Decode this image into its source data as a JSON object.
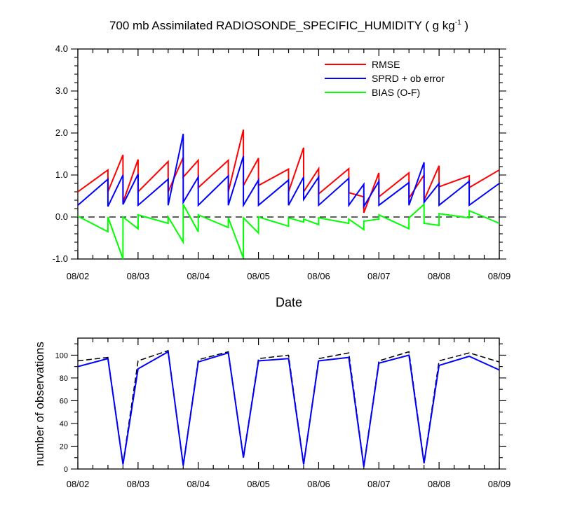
{
  "page": {
    "title_main": "700 mb Assimilated RADIOSONDE_SPECIFIC_HUMIDITY ( g kg",
    "title_sup": "-1",
    "title_end": " )"
  },
  "colors": {
    "rmse": "#ff0000",
    "sprd": "#0000ff",
    "bias": "#00ff00",
    "ref": "#000000"
  },
  "chart_data": [
    {
      "type": "line",
      "title": "700 mb Assimilated RADIOSONDE_SPECIFIC_HUMIDITY ( g kg-1 )",
      "xlabel": "Date",
      "ylabel": "",
      "x_tick_labels": [
        "08/02",
        "08/03",
        "08/04",
        "08/05",
        "08/06",
        "08/07",
        "08/08",
        "08/09"
      ],
      "y_tick_labels": [
        "-1.0",
        "0.0",
        "1.0",
        "2.0",
        "3.0",
        "4.0"
      ],
      "xlim": [
        0,
        7
      ],
      "ylim": [
        -1,
        4
      ],
      "x_unit": "days since 08/02 00Z",
      "legend_position": "top-right",
      "grid": false,
      "reference_line": {
        "y": 0,
        "style": "dashed"
      },
      "series": [
        {
          "name": "RMSE",
          "color": "#ff0000",
          "points": [
            [
              0,
              0.6
            ],
            [
              0.5,
              1.12
            ],
            [
              0.5,
              0.6
            ],
            [
              0.75,
              1.48
            ],
            [
              0.75,
              0.35
            ],
            [
              1,
              1.37
            ],
            [
              1,
              0.6
            ],
            [
              1.5,
              1.32
            ],
            [
              1.5,
              0.6
            ],
            [
              1.75,
              1.42
            ],
            [
              1.75,
              0.95
            ],
            [
              2,
              1.35
            ],
            [
              2,
              0.7
            ],
            [
              2.5,
              1.35
            ],
            [
              2.5,
              0.6
            ],
            [
              2.75,
              2.08
            ],
            [
              2.75,
              0.75
            ],
            [
              3,
              1.4
            ],
            [
              3,
              0.75
            ],
            [
              3.5,
              1.14
            ],
            [
              3.5,
              0.6
            ],
            [
              3.75,
              1.65
            ],
            [
              3.75,
              0.6
            ],
            [
              4,
              1.15
            ],
            [
              4,
              0.55
            ],
            [
              4.5,
              1.15
            ],
            [
              4.5,
              0.58
            ],
            [
              4.75,
              0.48
            ],
            [
              4.75,
              0.1
            ],
            [
              5,
              1.05
            ],
            [
              5,
              0.48
            ],
            [
              5.5,
              1.05
            ],
            [
              5.5,
              0.45
            ],
            [
              5.75,
              1.0
            ],
            [
              5.75,
              0.4
            ],
            [
              6,
              1.22
            ],
            [
              6,
              0.72
            ],
            [
              6.5,
              0.98
            ],
            [
              6.5,
              0.7
            ],
            [
              7,
              1.12
            ]
          ]
        },
        {
          "name": "SPRD + ob error",
          "color": "#0000ff",
          "points": [
            [
              0,
              0.28
            ],
            [
              0.5,
              0.9
            ],
            [
              0.5,
              0.25
            ],
            [
              0.75,
              1.0
            ],
            [
              0.75,
              0.3
            ],
            [
              1,
              1.02
            ],
            [
              1,
              0.28
            ],
            [
              1.5,
              0.9
            ],
            [
              1.5,
              0.28
            ],
            [
              1.75,
              1.98
            ],
            [
              1.75,
              0.35
            ],
            [
              2,
              0.95
            ],
            [
              2,
              0.28
            ],
            [
              2.5,
              0.98
            ],
            [
              2.5,
              0.28
            ],
            [
              2.75,
              1.45
            ],
            [
              2.75,
              0.28
            ],
            [
              3,
              0.88
            ],
            [
              3,
              0.28
            ],
            [
              3.5,
              0.88
            ],
            [
              3.5,
              0.28
            ],
            [
              3.75,
              0.95
            ],
            [
              3.75,
              0.42
            ],
            [
              4,
              0.95
            ],
            [
              4,
              0.28
            ],
            [
              4.5,
              0.92
            ],
            [
              4.5,
              0.28
            ],
            [
              4.75,
              0.78
            ],
            [
              4.75,
              0.25
            ],
            [
              5,
              0.85
            ],
            [
              5,
              0.28
            ],
            [
              5.5,
              0.82
            ],
            [
              5.5,
              0.28
            ],
            [
              5.75,
              1.3
            ],
            [
              5.75,
              0.35
            ],
            [
              6,
              0.8
            ],
            [
              6,
              0.28
            ],
            [
              6.5,
              0.85
            ],
            [
              6.5,
              0.28
            ],
            [
              7,
              0.8
            ]
          ]
        },
        {
          "name": "BIAS (O-F)",
          "color": "#00ff00",
          "points": [
            [
              0,
              0.02
            ],
            [
              0.5,
              -0.35
            ],
            [
              0.5,
              0.0
            ],
            [
              0.75,
              -1.0
            ],
            [
              0.75,
              0.0
            ],
            [
              1,
              -0.28
            ],
            [
              1,
              0.05
            ],
            [
              1.5,
              -0.15
            ],
            [
              1.5,
              0.0
            ],
            [
              1.75,
              -0.6
            ],
            [
              1.75,
              0.3
            ],
            [
              2,
              -0.35
            ],
            [
              2,
              0.05
            ],
            [
              2.5,
              -0.25
            ],
            [
              2.5,
              -0.02
            ],
            [
              2.75,
              -0.98
            ],
            [
              2.75,
              -0.02
            ],
            [
              3,
              -0.38
            ],
            [
              3,
              0.0
            ],
            [
              3.5,
              -0.22
            ],
            [
              3.5,
              -0.02
            ],
            [
              3.75,
              -0.12
            ],
            [
              3.75,
              -0.05
            ],
            [
              4,
              -0.18
            ],
            [
              4,
              -0.02
            ],
            [
              4.5,
              -0.15
            ],
            [
              4.5,
              -0.05
            ],
            [
              4.75,
              -0.3
            ],
            [
              4.75,
              -0.1
            ],
            [
              5,
              -0.05
            ],
            [
              5,
              0.05
            ],
            [
              5.5,
              -0.28
            ],
            [
              5.5,
              -0.02
            ],
            [
              5.75,
              0.3
            ],
            [
              5.75,
              -0.15
            ],
            [
              6,
              -0.2
            ],
            [
              6,
              0.08
            ],
            [
              6.5,
              -0.02
            ],
            [
              6.5,
              0.15
            ],
            [
              7,
              -0.15
            ]
          ]
        }
      ]
    },
    {
      "type": "line",
      "title": "",
      "xlabel": "",
      "ylabel": "number of observations",
      "x_tick_labels": [
        "08/02",
        "08/03",
        "08/04",
        "08/05",
        "08/06",
        "08/07",
        "08/08",
        "08/09"
      ],
      "y_tick_labels": [
        "0",
        "20",
        "40",
        "60",
        "80",
        "100"
      ],
      "xlim": [
        0,
        7
      ],
      "ylim": [
        0,
        115
      ],
      "x_unit": "days since 08/02 00Z",
      "grid": false,
      "series": [
        {
          "name": "",
          "style": "dashed",
          "color": "#000000",
          "points": [
            [
              0,
              95
            ],
            [
              0.5,
              98
            ],
            [
              0.75,
              5
            ],
            [
              1,
              95
            ],
            [
              1.5,
              104
            ],
            [
              1.75,
              4
            ],
            [
              2,
              96
            ],
            [
              2.5,
              103
            ],
            [
              2.75,
              11
            ],
            [
              3,
              97
            ],
            [
              3.5,
              100
            ],
            [
              3.75,
              5
            ],
            [
              4,
              97
            ],
            [
              4.5,
              102
            ],
            [
              4.75,
              3
            ],
            [
              5,
              95
            ],
            [
              5.5,
              103
            ],
            [
              5.75,
              6
            ],
            [
              6,
              95
            ],
            [
              6.5,
              102
            ],
            [
              7,
              94
            ]
          ]
        },
        {
          "name": "",
          "style": "solid",
          "color": "#0000ff",
          "points": [
            [
              0,
              90
            ],
            [
              0.5,
              97
            ],
            [
              0.75,
              4
            ],
            [
              1,
              88
            ],
            [
              1.5,
              103
            ],
            [
              1.75,
              3
            ],
            [
              2,
              94
            ],
            [
              2.5,
              102
            ],
            [
              2.75,
              10
            ],
            [
              3,
              95
            ],
            [
              3.5,
              97
            ],
            [
              3.75,
              4
            ],
            [
              4,
              95
            ],
            [
              4.5,
              98
            ],
            [
              4.75,
              2
            ],
            [
              5,
              93
            ],
            [
              5.5,
              100
            ],
            [
              5.75,
              5
            ],
            [
              6,
              91
            ],
            [
              6.5,
              99
            ],
            [
              7,
              87
            ]
          ]
        }
      ]
    }
  ]
}
